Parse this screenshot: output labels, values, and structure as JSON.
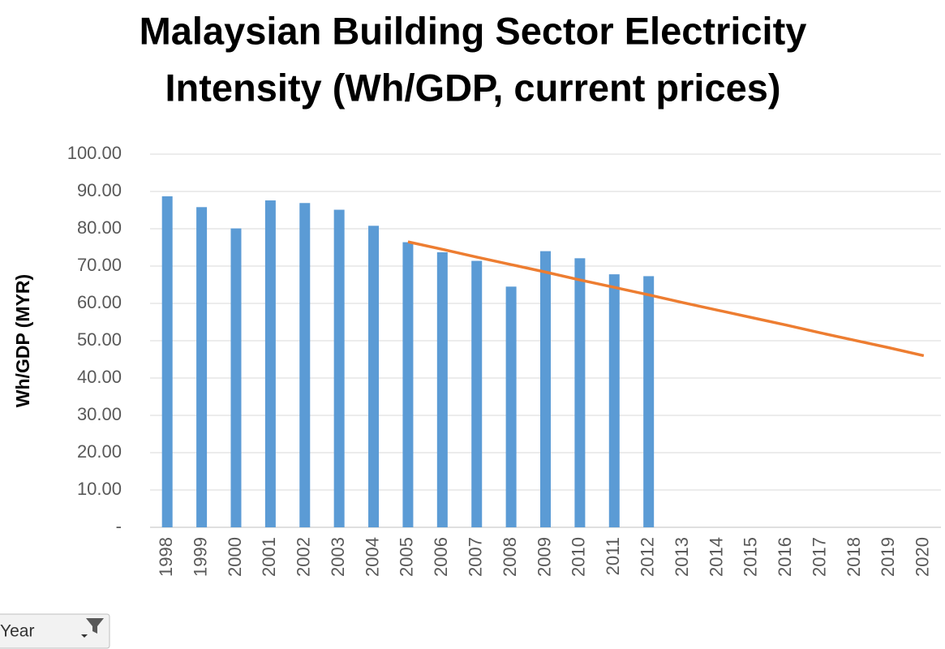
{
  "chart_data": {
    "type": "bar",
    "title": [
      "Malaysian Building Sector Electricity",
      "Intensity (Wh/GDP, current prices)"
    ],
    "y_label": "Wh/GDP (MYR)",
    "categories": [
      "1998",
      "1999",
      "2000",
      "2001",
      "2002",
      "2003",
      "2004",
      "2005",
      "2006",
      "2007",
      "2008",
      "2009",
      "2010",
      "2011",
      "2012",
      "2013",
      "2014",
      "2015",
      "2016",
      "2017",
      "2018",
      "2019",
      "2020"
    ],
    "series": [
      {
        "type": "bar",
        "color": "#5b9bd5",
        "values": [
          88.7,
          85.8,
          80.1,
          87.6,
          86.9,
          85.1,
          80.8,
          76.4,
          73.7,
          71.4,
          64.5,
          74.0,
          72.1,
          67.8,
          67.3,
          null,
          null,
          null,
          null,
          null,
          null,
          null,
          null
        ]
      },
      {
        "type": "line",
        "color": "#ed7d31",
        "values": [
          null,
          null,
          null,
          null,
          null,
          null,
          null,
          76.5,
          74.5,
          72.4,
          70.4,
          68.4,
          66.3,
          64.3,
          62.3,
          60.2,
          58.2,
          56.2,
          54.2,
          52.1,
          50.1,
          48.1,
          46.0
        ]
      }
    ],
    "ylim": [
      0,
      100
    ],
    "yticks": [
      {
        "value": 0,
        "label": "-"
      },
      {
        "value": 10,
        "label": "10.00"
      },
      {
        "value": 20,
        "label": "20.00"
      },
      {
        "value": 30,
        "label": "30.00"
      },
      {
        "value": 40,
        "label": "40.00"
      },
      {
        "value": 50,
        "label": "50.00"
      },
      {
        "value": 60,
        "label": "60.00"
      },
      {
        "value": 70,
        "label": "70.00"
      },
      {
        "value": 80,
        "label": "80.00"
      },
      {
        "value": 90,
        "label": "90.00"
      },
      {
        "value": 100,
        "label": "100.00"
      }
    ],
    "grid": true,
    "filter_button": "Year"
  }
}
